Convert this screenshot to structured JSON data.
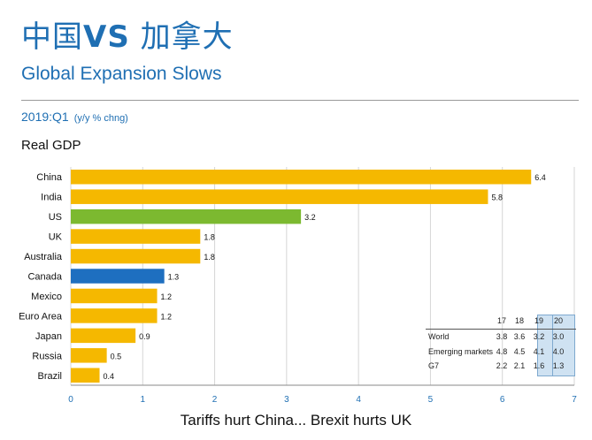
{
  "header": {
    "title_a": "中国",
    "title_b": "VS",
    "title_c": "加拿大",
    "subtitle": "Global Expansion Slows",
    "period": "2019:Q1",
    "unit": "(y/y % chng)",
    "series_label": "Real GDP",
    "caption": "Tariffs hurt China... Brexit hurts UK"
  },
  "chart_data": {
    "type": "bar",
    "orientation": "horizontal",
    "title": "Global Expansion Slows",
    "subtitle": "2019:Q1 (y/y % chng)",
    "ylabel": "Real GDP",
    "categories": [
      "China",
      "India",
      "US",
      "UK",
      "Australia",
      "Canada",
      "Mexico",
      "Euro Area",
      "Japan",
      "Russia",
      "Brazil"
    ],
    "values": [
      6.4,
      5.8,
      3.2,
      1.8,
      1.8,
      1.3,
      1.2,
      1.2,
      0.9,
      0.5,
      0.4
    ],
    "value_labels": [
      "6.4",
      "5.8",
      "3.2",
      "1.8",
      "1.8",
      "1.3",
      "1.2",
      "1.2",
      "0.9",
      "0.5",
      "0.4"
    ],
    "bar_colors": [
      "#f5b800",
      "#f5b800",
      "#7cb930",
      "#f5b800",
      "#f5b800",
      "#1e6fc0",
      "#f5b800",
      "#f5b800",
      "#f5b800",
      "#f5b800",
      "#f5b800"
    ],
    "xlim": [
      0,
      7
    ],
    "xticks": [
      "0",
      "1",
      "2",
      "3",
      "4",
      "5",
      "6",
      "7"
    ],
    "grid": true,
    "colors": {
      "default": "#f5b800",
      "us": "#7cb930",
      "canada": "#1e6fc0",
      "axis": "#1f6fb3"
    }
  },
  "forecast_table": {
    "columns": [
      "17",
      "18",
      "19",
      "20"
    ],
    "rows": [
      {
        "name": "World",
        "values": [
          "3.8",
          "3.6",
          "3.2",
          "3.0"
        ]
      },
      {
        "name": "Emerging markets",
        "values": [
          "4.8",
          "4.5",
          "4.1",
          "4.0"
        ]
      },
      {
        "name": "G7",
        "values": [
          "2.2",
          "2.1",
          "1.6",
          "1.3"
        ]
      }
    ]
  }
}
